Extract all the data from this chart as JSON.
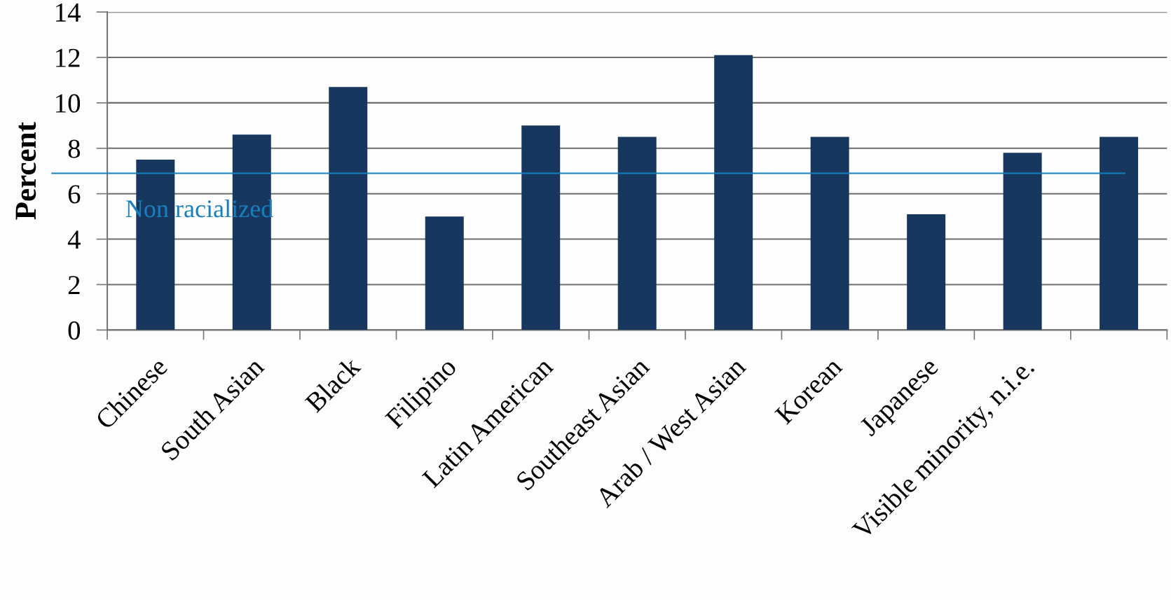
{
  "chart_data": {
    "type": "bar",
    "ylabel": "Percent",
    "categories": [
      "Chinese",
      "South Asian",
      "Black",
      "Filipino",
      "Latin American",
      "Southeast Asian",
      "Arab / West Asian",
      "Korean",
      "Japanese",
      "Visible minority, n.i.e.",
      null
    ],
    "values": [
      7.5,
      8.6,
      10.7,
      5.0,
      9.0,
      8.5,
      12.1,
      8.5,
      5.1,
      7.8,
      8.5
    ],
    "color": "#17375e",
    "ylim": [
      0,
      14
    ],
    "yticks": [
      0,
      2,
      4,
      6,
      8,
      10,
      12,
      14
    ],
    "grid": "y",
    "ref_lines": [
      {
        "axis": "y",
        "value": 6.9,
        "label": "Non racialized",
        "color": "#1580bd"
      }
    ]
  }
}
